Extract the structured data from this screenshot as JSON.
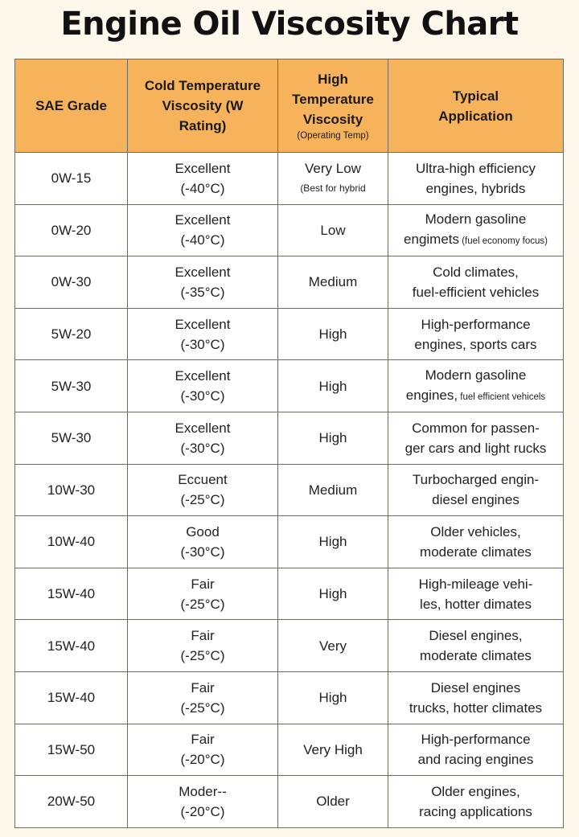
{
  "title": "Engine Oil Viscosity Chart",
  "colors": {
    "header_bg": "#f7b35c",
    "page_bg": "#fdf7ec",
    "border": "#6f6a62"
  },
  "headers": {
    "grade": "SAE Grade",
    "cold": "Cold Temperature Viscosity (W Rating)",
    "high": "High Temperature Viscosity",
    "high_sub": "(Operating Temp)",
    "app": "Typical Application"
  },
  "rows": [
    {
      "grade": "0W-15",
      "cold": "Excellent",
      "temp": "(-40°C)",
      "high": "Very Low",
      "high_note": "(Best for hybrid",
      "app1": "Ultra-high efficiency",
      "app2": "engines, hybrids"
    },
    {
      "grade": "0W-20",
      "cold": "Excellent",
      "temp": "(-40°C)",
      "high": "Low",
      "high_note": "",
      "app1": "Modern gasoline",
      "app2": "engimets",
      "app2_small": " (fuel economy focus)"
    },
    {
      "grade": "0W-30",
      "cold": "Excellent",
      "temp": "(-35°C)",
      "high": "Medium",
      "high_note": "",
      "app1": "Cold climates,",
      "app2": "fuel-efficient vehicles"
    },
    {
      "grade": "5W-20",
      "cold": "Excellent",
      "temp": "(-30°C)",
      "high": "High",
      "high_note": "",
      "app1": "High-performance",
      "app2": "engines, sports cars"
    },
    {
      "grade": "5W-30",
      "cold": "Excellent",
      "temp": "(-30°C)",
      "high": "High",
      "high_note": "",
      "app1": "Modern gasoline",
      "app2": "engines,",
      "app2_small": " fuel efficient vehicels"
    },
    {
      "grade": "5W-30",
      "cold": "Excellent",
      "temp": "(-30°C)",
      "high": "High",
      "high_note": "",
      "app1": "Common for passen-",
      "app2": "ger cars and light rucks"
    },
    {
      "grade": "10W-30",
      "cold": "Eccuent",
      "temp": "(-25°C)",
      "high": "Medium",
      "high_note": "",
      "app1": "Turbocharged engin-",
      "app2": "diesel engines"
    },
    {
      "grade": "10W-40",
      "cold": "Good",
      "temp": "(-30°C)",
      "high": "High",
      "high_note": "",
      "app1": "Older vehicles,",
      "app2": "moderate climates"
    },
    {
      "grade": "15W-40",
      "cold": "Fair",
      "temp": "(-25°C)",
      "high": "High",
      "high_note": "",
      "app1": "High-mileage vehi-",
      "app2": "les, hotter dimates"
    },
    {
      "grade": "15W-40",
      "cold": "Fair",
      "temp": "(-25°C)",
      "high": "Very",
      "high_note": "",
      "app1": "Diesel engines,",
      "app2": "moderate climates"
    },
    {
      "grade": "15W-40",
      "cold": "Fair",
      "temp": "(-25°C)",
      "high": "High",
      "high_note": "",
      "app1": "Diesel engines",
      "app2": "trucks, hotter climates"
    },
    {
      "grade": "15W-50",
      "cold": "Fair",
      "temp": "(-20°C)",
      "high": "Very High",
      "high_note": "",
      "app1": "High-performance",
      "app2": "and racing engines"
    },
    {
      "grade": "20W-50",
      "cold": "Moder--",
      "temp": "(-20°C)",
      "high": "Older",
      "high_note": "",
      "app1": "Older engines,",
      "app2": "racing applications"
    }
  ]
}
